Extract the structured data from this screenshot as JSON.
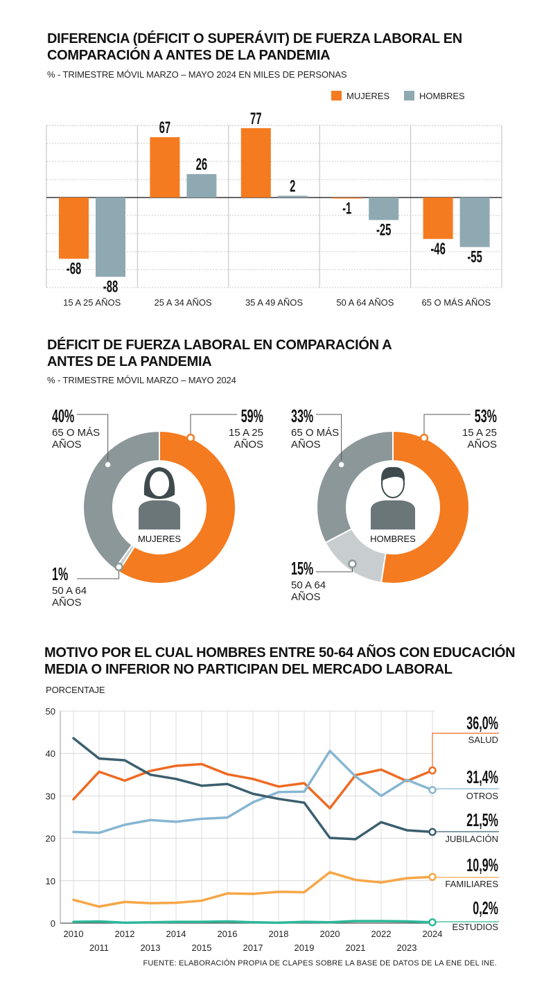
{
  "chart_data": [
    {
      "type": "bar",
      "title": "DIFERENCIA (DÉFICIT O SUPERÁVIT) DE FUERZA LABORAL EN COMPARACIÓN A ANTES DE LA PANDEMIA",
      "subtitle": "% - TRIMESTRE MÓVIL MARZO – MAYO 2024 EN MILES DE PERSONAS",
      "categories": [
        "15 A 25 AÑOS",
        "25 A 34 AÑOS",
        "35 A 49 AÑOS",
        "50 A 64 AÑOS",
        "65 O MÁS AÑOS"
      ],
      "series": [
        {
          "name": "MUJERES",
          "color": "#f47b20",
          "values": [
            -68,
            67,
            77,
            -1,
            -46
          ],
          "labels": [
            "-68",
            "67",
            "77",
            "-1",
            "-46"
          ]
        },
        {
          "name": "HOMBRES",
          "color": "#8fa9b2",
          "values": [
            -88,
            26,
            2,
            -25,
            -55
          ],
          "labels": [
            "-88",
            "26",
            "2",
            "-25",
            "-55"
          ]
        }
      ],
      "ylim": [
        -100,
        80
      ],
      "legend": "top-right",
      "grid": true
    },
    {
      "type": "pie",
      "title": "DÉFICIT DE FUERZA LABORAL EN COMPARACIÓN A ANTES DE LA PANDEMIA",
      "subtitle": "% - TRIMESTRE MÓVIL MARZO – MAYO 2024",
      "charts": [
        {
          "name": "MUJERES",
          "slices": [
            {
              "value": 59,
              "pct": "59%",
              "label": [
                "15 A 25",
                "AÑOS"
              ],
              "color": "#f47b20"
            },
            {
              "value": 1,
              "pct": "1%",
              "label": [
                "50 A 64",
                "AÑOS"
              ],
              "color": "#c8ced0"
            },
            {
              "value": 40,
              "pct": "40%",
              "label": [
                "65 O MÁS",
                "AÑOS"
              ],
              "color": "#8c9799"
            }
          ]
        },
        {
          "name": "HOMBRES",
          "slices": [
            {
              "value": 53,
              "pct": "53%",
              "label": [
                "15 A 25",
                "AÑOS"
              ],
              "color": "#f47b20"
            },
            {
              "value": 15,
              "pct": "15%",
              "label": [
                "50 A 64",
                "AÑOS"
              ],
              "color": "#c8ced0"
            },
            {
              "value": 33,
              "pct": "33%",
              "label": [
                "65 O MÁS",
                "AÑOS"
              ],
              "color": "#8c9799"
            }
          ]
        }
      ]
    },
    {
      "type": "line",
      "title": "MOTIVO POR EL CUAL HOMBRES ENTRE 50-64 AÑOS CON EDUCACIÓN MEDIA O INFERIOR NO PARTICIPAN DEL MERCADO LABORAL",
      "ylabel": "PORCENTAJE",
      "x": [
        2010,
        2011,
        2012,
        2013,
        2014,
        2015,
        2016,
        2017,
        2018,
        2019,
        2020,
        2021,
        2022,
        2023,
        2024
      ],
      "ylim": [
        0,
        50
      ],
      "yticks": [
        0,
        10,
        20,
        30,
        40,
        50
      ],
      "grid": true,
      "series": [
        {
          "name": "SALUD",
          "end_label": "36,0%",
          "color": "#ee6a22",
          "values": [
            29.2,
            35.7,
            33.6,
            35.9,
            37.1,
            37.5,
            35.1,
            34.0,
            32.2,
            33.0,
            27.1,
            34.9,
            36.2,
            33.5,
            36.0
          ]
        },
        {
          "name": "OTROS",
          "end_label": "31,4%",
          "color": "#86b6d2",
          "values": [
            21.5,
            21.3,
            23.2,
            24.3,
            23.9,
            24.6,
            24.9,
            28.5,
            30.9,
            31.0,
            40.6,
            34.6,
            30.0,
            33.8,
            31.4
          ]
        },
        {
          "name": "JUBILACIÓN",
          "end_label": "21,5%",
          "color": "#3b5f6e",
          "values": [
            43.6,
            38.8,
            38.4,
            35.0,
            34.0,
            32.4,
            32.8,
            30.5,
            29.3,
            28.4,
            20.1,
            19.8,
            23.8,
            21.9,
            21.5
          ]
        },
        {
          "name": "FAMILIARES",
          "end_label": "10,9%",
          "color": "#f7a646",
          "values": [
            5.5,
            3.9,
            5.0,
            4.7,
            4.8,
            5.3,
            7.0,
            6.9,
            7.4,
            7.3,
            12.0,
            10.2,
            9.6,
            10.6,
            10.9
          ]
        },
        {
          "name": "ESTUDIOS",
          "end_label": "0,2%",
          "color": "#2bb79a",
          "values": [
            0.3,
            0.4,
            0.1,
            0.2,
            0.3,
            0.3,
            0.4,
            0.2,
            0.1,
            0.3,
            0.2,
            0.5,
            0.5,
            0.4,
            0.2
          ]
        }
      ]
    }
  ],
  "source": "FUENTE: ELABORACIÓN PROPIA DE CLAPES SOBRE LA BASE DE DATOS DE LA ENE DEL INE."
}
